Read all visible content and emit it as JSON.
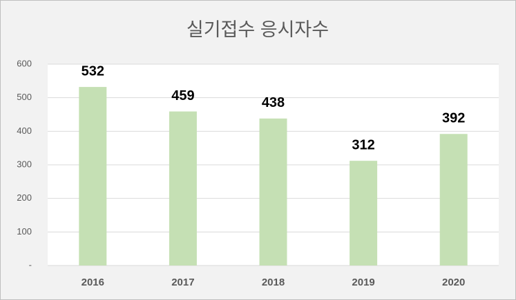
{
  "chart_data": {
    "type": "bar",
    "title": "실기접수 응시자수",
    "categories": [
      "2016",
      "2017",
      "2018",
      "2019",
      "2020"
    ],
    "values": [
      532,
      459,
      438,
      312,
      392
    ],
    "color": "#c5e0b4",
    "ylim": [
      0,
      600
    ],
    "yticks": [
      {
        "value": 0,
        "label": "-"
      },
      100,
      200,
      300,
      400,
      500,
      600
    ],
    "grid": true
  }
}
